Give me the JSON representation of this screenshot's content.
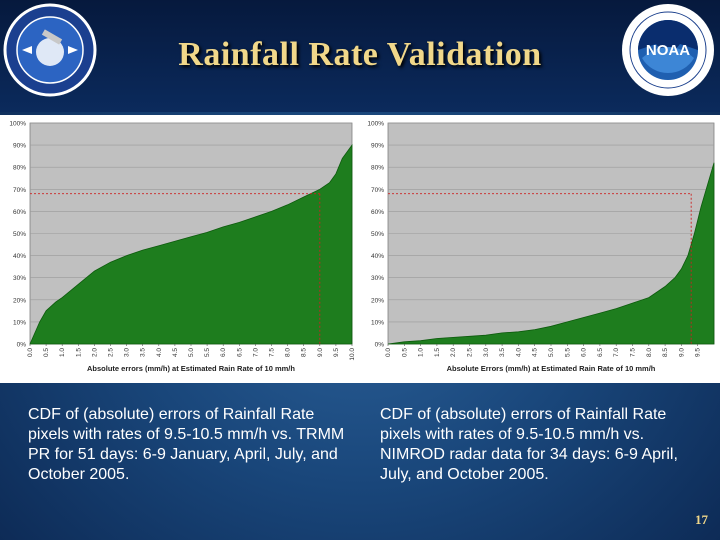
{
  "slide": {
    "title": "Rainfall Rate Validation",
    "page_number": "17",
    "logo_left_alt": "NOAA NESDIS STAR",
    "logo_right_alt": "NOAA"
  },
  "captions": {
    "left": "CDF of (absolute) errors of Rainfall Rate pixels with rates of 9.5-10.5 mm/h vs. TRMM PR for 51 days: 6-9 January, April, July, and October 2005.",
    "right": "CDF of (absolute) errors of Rainfall Rate pixels with rates of 9.5-10.5 mm/h vs. NIMROD radar data for 34 days: 6-9 April, July, and October 2005."
  },
  "colors": {
    "area_fill": "#1e7d1e",
    "area_edge": "#0d5a0d",
    "plot_bg": "#c0c0c0",
    "reference_line": "#cc2222",
    "title_gold": "#f1d88a"
  },
  "chart_data": [
    {
      "type": "area",
      "title": "",
      "xlabel": "Absolute errors (mm/h) at Estimated Rain Rate of 10 mm/h",
      "ylabel": "",
      "xlim": [
        0,
        10
      ],
      "ylim": [
        0,
        100
      ],
      "x_ticks": [
        "0.0",
        "0.5",
        "1.0",
        "1.5",
        "2.0",
        "2.5",
        "3.0",
        "3.5",
        "4.0",
        "4.5",
        "5.0",
        "5.5",
        "6.0",
        "6.5",
        "7.0",
        "7.5",
        "8.0",
        "8.5",
        "9.0",
        "9.5",
        "10.0"
      ],
      "y_ticks": [
        "0%",
        "10%",
        "20%",
        "30%",
        "40%",
        "50%",
        "60%",
        "70%",
        "80%",
        "90%",
        "100%"
      ],
      "reference_y": 68,
      "reference_x": 9.0,
      "series": [
        {
          "name": "CDF",
          "x": [
            0,
            0.3,
            0.5,
            0.8,
            1.0,
            1.5,
            2.0,
            2.5,
            3.0,
            3.5,
            4.0,
            4.5,
            5.0,
            5.5,
            6.0,
            6.5,
            7.0,
            7.5,
            8.0,
            8.5,
            9.0,
            9.3,
            9.5,
            9.7,
            10.0
          ],
          "values": [
            0,
            10,
            15,
            19,
            21,
            27,
            33,
            37,
            40,
            42.5,
            44.5,
            46.5,
            48.5,
            50.5,
            53,
            55,
            57.5,
            60,
            63,
            66.5,
            70,
            73,
            77,
            84,
            90
          ]
        }
      ]
    },
    {
      "type": "area",
      "title": "",
      "xlabel": "Absolute Errors (mm/h) at Estimated Rain Rate of 10 mm/h",
      "ylabel": "",
      "xlim": [
        0,
        10
      ],
      "ylim": [
        0,
        100
      ],
      "x_ticks": [
        "0.0",
        "0.5",
        "1.0",
        "1.5",
        "2.0",
        "2.5",
        "3.0",
        "3.5",
        "4.0",
        "4.5",
        "5.0",
        "5.5",
        "6.0",
        "6.5",
        "7.0",
        "7.5",
        "8.0",
        "8.5",
        "9.0",
        "9.5"
      ],
      "y_ticks": [
        "0%",
        "10%",
        "20%",
        "30%",
        "40%",
        "50%",
        "60%",
        "70%",
        "80%",
        "90%",
        "100%"
      ],
      "reference_y": 68,
      "reference_x": 9.3,
      "series": [
        {
          "name": "CDF",
          "x": [
            0,
            0.5,
            1.0,
            1.5,
            2.0,
            2.5,
            3.0,
            3.5,
            4.0,
            4.5,
            5.0,
            5.5,
            6.0,
            6.5,
            7.0,
            7.5,
            8.0,
            8.5,
            8.8,
            9.0,
            9.2,
            9.4,
            9.6,
            9.8,
            10.0
          ],
          "values": [
            0,
            1,
            1.5,
            2.5,
            3,
            3.5,
            4,
            5,
            5.5,
            6.5,
            8,
            10,
            12,
            14,
            16,
            18.5,
            21,
            26,
            30,
            34,
            40,
            50,
            62,
            72,
            82
          ]
        }
      ]
    }
  ]
}
